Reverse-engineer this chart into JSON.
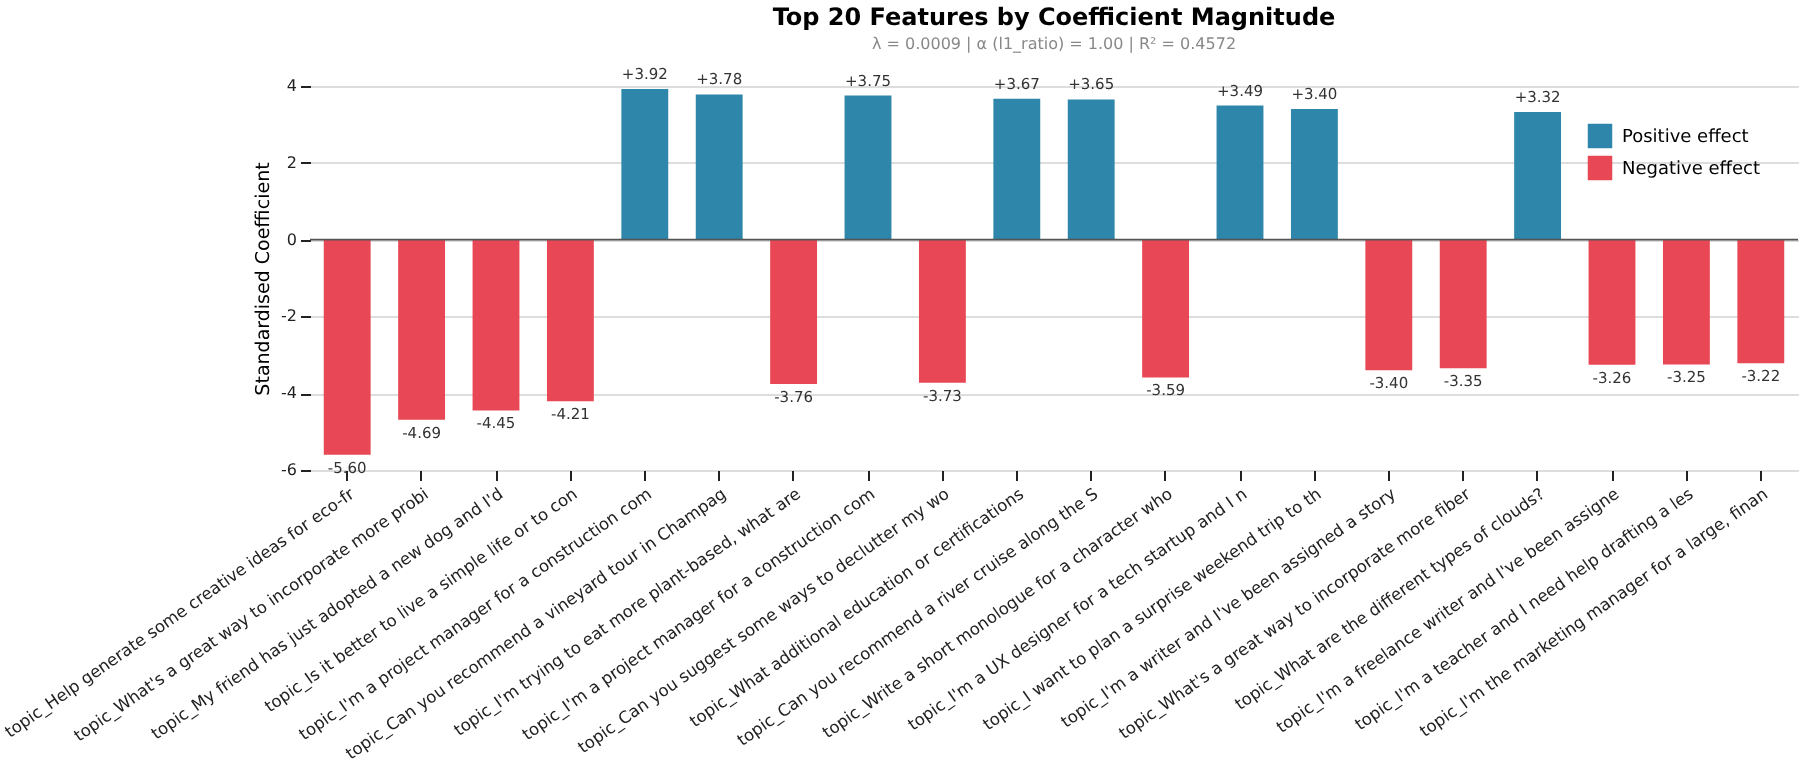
{
  "chart_data": {
    "type": "bar",
    "title": "Top 20 Features by Coefficient Magnitude",
    "subtitle": "λ = 0.0009   |   α (l1_ratio) = 1.00   |   R² = 0.4572",
    "ylabel": "Standardised Coefficient",
    "categories": [
      "topic_Help generate some creative ideas for eco-fr",
      "topic_What's a great way to incorporate more probi",
      "topic_My friend has just adopted a new dog and I'd",
      "topic_Is it better to live a simple life or to con",
      "topic_I'm a project manager for a construction com",
      "topic_Can you recommend a vineyard tour in Champag",
      "topic_I'm trying to eat more plant-based, what are",
      "topic_I'm a project manager for a construction com",
      "topic_Can you suggest some ways to declutter my wo",
      "topic_What additional education or certifications",
      "topic_Can you recommend a river cruise along the S",
      "topic_Write a short monologue for a character who",
      "topic_I'm a UX designer for a tech startup and I n",
      "topic_I want to plan a surprise weekend trip to th",
      "topic_I'm a writer and I've been assigned a story",
      "topic_What's a great way to incorporate more fiber",
      "topic_What are the different types of clouds?",
      "topic_I'm a freelance writer and I've been assigne",
      "topic_I'm a teacher and I need help drafting a les",
      "topic_I'm the marketing manager for a large, finan"
    ],
    "series": [
      {
        "name": "Positive effect",
        "color": "#2e86ab",
        "values": [
          null,
          null,
          null,
          null,
          3.92,
          3.78,
          null,
          3.75,
          null,
          3.67,
          3.65,
          null,
          3.49,
          3.4,
          null,
          null,
          3.32,
          null,
          null,
          null
        ],
        "value_labels": [
          null,
          null,
          null,
          null,
          "+3.92",
          "+3.78",
          null,
          "+3.75",
          null,
          "+3.67",
          "+3.65",
          null,
          "+3.49",
          "+3.40",
          null,
          null,
          "+3.32",
          null,
          null,
          null
        ]
      },
      {
        "name": "Negative effect",
        "color": "#e84855",
        "values": [
          -5.6,
          -4.69,
          -4.45,
          -4.21,
          null,
          null,
          -3.76,
          null,
          -3.73,
          null,
          null,
          -3.59,
          null,
          null,
          -3.4,
          -3.35,
          null,
          -3.26,
          -3.25,
          -3.22
        ],
        "value_labels": [
          "-5.60",
          "-4.69",
          "-4.45",
          "-4.21",
          null,
          null,
          "-3.76",
          null,
          "-3.73",
          null,
          null,
          "-3.59",
          null,
          null,
          "-3.40",
          "-3.35",
          null,
          "-3.26",
          "-3.25",
          "-3.22"
        ]
      }
    ],
    "ylim": [
      -6,
      4
    ],
    "yticks": [
      -6,
      -4,
      -2,
      0,
      2,
      4
    ],
    "grid": "y",
    "legend": "top right",
    "ref_lines": [
      {
        "axis": "y",
        "value": 0,
        "color": "#555555"
      }
    ]
  }
}
